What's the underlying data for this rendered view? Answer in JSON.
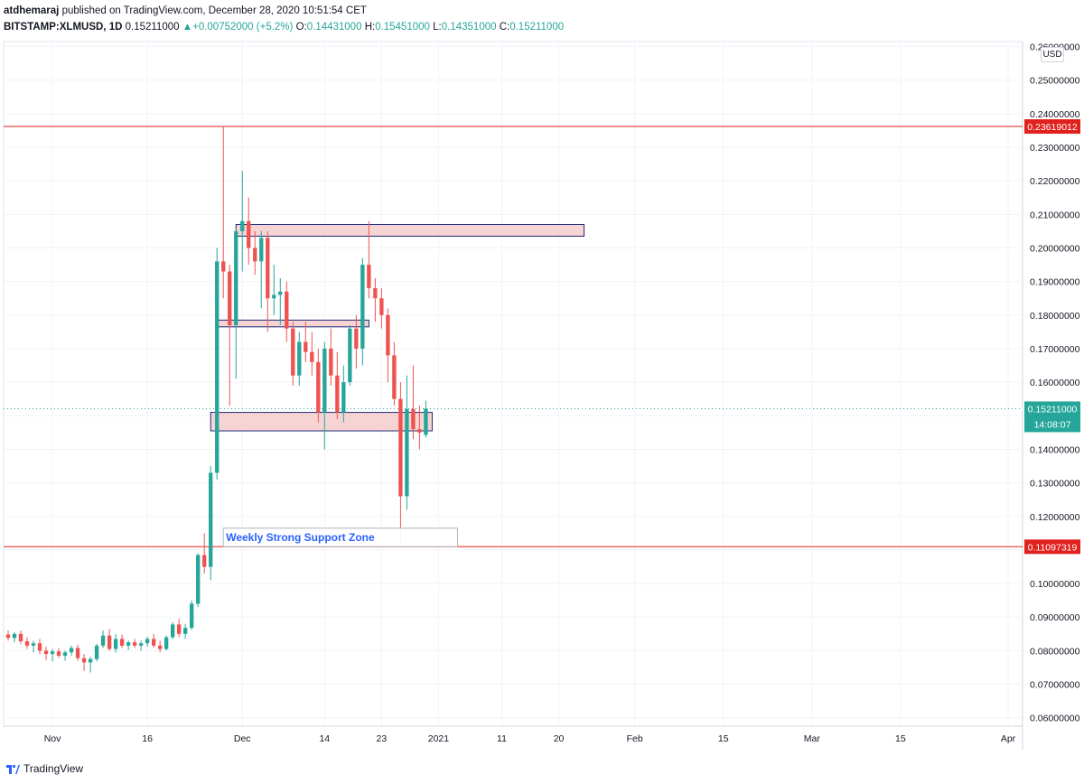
{
  "header": {
    "author": "atdhemaraj",
    "published_text": "published on TradingView.com, December 28, 2020 10:51:54 CET",
    "symbol": "BITSTAMP:XLMUSD, 1D",
    "last": "0.15211000",
    "change": "+0.00752000 (+5.2%)",
    "change_arrow": "▲",
    "open_label": "O:",
    "open": "0.14431000",
    "high_label": "H:",
    "high": "0.15451000",
    "low_label": "L:",
    "low": "0.14351000",
    "close_label": "C:",
    "close": "0.15211000"
  },
  "currency_badge": "USD",
  "footer": {
    "brand": "TradingView",
    "logo_icon": "tradingview-logo-icon"
  },
  "colors": {
    "up": "#26a69a",
    "down": "#ef5350",
    "hline": "#e0211d",
    "zone_fill": "#f4c5c5",
    "zone_border": "#1e2a78",
    "annotation_text": "#2962ff",
    "last_price_bg": "#26a69a"
  },
  "chart_data": {
    "type": "candlestick",
    "title": "",
    "xlabel": "",
    "ylabel": "",
    "ylim": [
      0.0575,
      0.2615
    ],
    "y_ticks": [
      "0.06000000",
      "0.07000000",
      "0.08000000",
      "0.09000000",
      "0.10000000",
      "0.11000000",
      "0.12000000",
      "0.13000000",
      "0.14000000",
      "0.15000000",
      "0.16000000",
      "0.17000000",
      "0.18000000",
      "0.19000000",
      "0.20000000",
      "0.21000000",
      "0.22000000",
      "0.23000000",
      "0.24000000",
      "0.25000000",
      "0.26000000"
    ],
    "x_ticks": [
      "Nov",
      "16",
      "Dec",
      "14",
      "23",
      "2021",
      "11",
      "20",
      "Feb",
      "15",
      "Mar",
      "15",
      "Apr"
    ],
    "x_tick_dates": [
      "2020-11-01",
      "2020-11-16",
      "2020-12-01",
      "2020-12-14",
      "2020-12-23",
      "2021-01-01",
      "2021-01-11",
      "2021-01-20",
      "2021-02-01",
      "2021-02-15",
      "2021-03-01",
      "2021-03-15",
      "2021-04-01"
    ],
    "candles": [
      {
        "date": "2020-10-25",
        "o": 0.0848,
        "h": 0.086,
        "l": 0.083,
        "c": 0.0838
      },
      {
        "date": "2020-10-26",
        "o": 0.0838,
        "h": 0.0855,
        "l": 0.0825,
        "c": 0.085
      },
      {
        "date": "2020-10-27",
        "o": 0.085,
        "h": 0.086,
        "l": 0.082,
        "c": 0.0828
      },
      {
        "date": "2020-10-28",
        "o": 0.0828,
        "h": 0.084,
        "l": 0.0805,
        "c": 0.0815
      },
      {
        "date": "2020-10-29",
        "o": 0.0815,
        "h": 0.083,
        "l": 0.0795,
        "c": 0.0822
      },
      {
        "date": "2020-10-30",
        "o": 0.0822,
        "h": 0.0835,
        "l": 0.079,
        "c": 0.08
      },
      {
        "date": "2020-10-31",
        "o": 0.08,
        "h": 0.0812,
        "l": 0.0772,
        "c": 0.079
      },
      {
        "date": "2020-11-01",
        "o": 0.079,
        "h": 0.0805,
        "l": 0.0768,
        "c": 0.0798
      },
      {
        "date": "2020-11-02",
        "o": 0.0798,
        "h": 0.0808,
        "l": 0.0778,
        "c": 0.0785
      },
      {
        "date": "2020-11-03",
        "o": 0.0785,
        "h": 0.08,
        "l": 0.077,
        "c": 0.0795
      },
      {
        "date": "2020-11-04",
        "o": 0.0795,
        "h": 0.0815,
        "l": 0.0785,
        "c": 0.0808
      },
      {
        "date": "2020-11-05",
        "o": 0.0808,
        "h": 0.0818,
        "l": 0.077,
        "c": 0.0778
      },
      {
        "date": "2020-11-06",
        "o": 0.0778,
        "h": 0.079,
        "l": 0.074,
        "c": 0.0765
      },
      {
        "date": "2020-11-07",
        "o": 0.0765,
        "h": 0.0782,
        "l": 0.0735,
        "c": 0.0775
      },
      {
        "date": "2020-11-08",
        "o": 0.0775,
        "h": 0.082,
        "l": 0.0768,
        "c": 0.0815
      },
      {
        "date": "2020-11-09",
        "o": 0.0815,
        "h": 0.086,
        "l": 0.0808,
        "c": 0.0845
      },
      {
        "date": "2020-11-10",
        "o": 0.0845,
        "h": 0.0865,
        "l": 0.08,
        "c": 0.0805
      },
      {
        "date": "2020-11-11",
        "o": 0.0805,
        "h": 0.085,
        "l": 0.0795,
        "c": 0.0835
      },
      {
        "date": "2020-11-12",
        "o": 0.0835,
        "h": 0.0848,
        "l": 0.0808,
        "c": 0.0815
      },
      {
        "date": "2020-11-13",
        "o": 0.0815,
        "h": 0.083,
        "l": 0.0802,
        "c": 0.0825
      },
      {
        "date": "2020-11-14",
        "o": 0.0825,
        "h": 0.0835,
        "l": 0.0808,
        "c": 0.0815
      },
      {
        "date": "2020-11-15",
        "o": 0.0815,
        "h": 0.083,
        "l": 0.08,
        "c": 0.0822
      },
      {
        "date": "2020-11-16",
        "o": 0.0822,
        "h": 0.0842,
        "l": 0.0812,
        "c": 0.0835
      },
      {
        "date": "2020-11-17",
        "o": 0.0835,
        "h": 0.085,
        "l": 0.081,
        "c": 0.0815
      },
      {
        "date": "2020-11-18",
        "o": 0.0815,
        "h": 0.083,
        "l": 0.0795,
        "c": 0.0805
      },
      {
        "date": "2020-11-19",
        "o": 0.0805,
        "h": 0.0845,
        "l": 0.08,
        "c": 0.084
      },
      {
        "date": "2020-11-20",
        "o": 0.084,
        "h": 0.0885,
        "l": 0.0835,
        "c": 0.0878
      },
      {
        "date": "2020-11-21",
        "o": 0.0878,
        "h": 0.0895,
        "l": 0.084,
        "c": 0.085
      },
      {
        "date": "2020-11-22",
        "o": 0.085,
        "h": 0.088,
        "l": 0.0835,
        "c": 0.0868
      },
      {
        "date": "2020-11-23",
        "o": 0.0868,
        "h": 0.095,
        "l": 0.0862,
        "c": 0.094
      },
      {
        "date": "2020-11-24",
        "o": 0.094,
        "h": 0.109,
        "l": 0.093,
        "c": 0.1085
      },
      {
        "date": "2020-11-25",
        "o": 0.1085,
        "h": 0.115,
        "l": 0.103,
        "c": 0.105
      },
      {
        "date": "2020-11-26",
        "o": 0.105,
        "h": 0.135,
        "l": 0.101,
        "c": 0.133
      },
      {
        "date": "2020-11-27",
        "o": 0.133,
        "h": 0.2,
        "l": 0.131,
        "c": 0.196
      },
      {
        "date": "2020-11-28",
        "o": 0.196,
        "h": 0.236,
        "l": 0.185,
        "c": 0.193
      },
      {
        "date": "2020-11-29",
        "o": 0.193,
        "h": 0.195,
        "l": 0.153,
        "c": 0.177
      },
      {
        "date": "2020-11-30",
        "o": 0.177,
        "h": 0.206,
        "l": 0.161,
        "c": 0.205
      },
      {
        "date": "2020-12-01",
        "o": 0.205,
        "h": 0.223,
        "l": 0.193,
        "c": 0.208
      },
      {
        "date": "2020-12-02",
        "o": 0.208,
        "h": 0.215,
        "l": 0.195,
        "c": 0.2
      },
      {
        "date": "2020-12-03",
        "o": 0.2,
        "h": 0.205,
        "l": 0.192,
        "c": 0.196
      },
      {
        "date": "2020-12-04",
        "o": 0.196,
        "h": 0.205,
        "l": 0.182,
        "c": 0.203
      },
      {
        "date": "2020-12-05",
        "o": 0.203,
        "h": 0.205,
        "l": 0.175,
        "c": 0.185
      },
      {
        "date": "2020-12-06",
        "o": 0.185,
        "h": 0.195,
        "l": 0.18,
        "c": 0.186
      },
      {
        "date": "2020-12-07",
        "o": 0.186,
        "h": 0.191,
        "l": 0.177,
        "c": 0.187
      },
      {
        "date": "2020-12-08",
        "o": 0.187,
        "h": 0.19,
        "l": 0.172,
        "c": 0.176
      },
      {
        "date": "2020-12-09",
        "o": 0.176,
        "h": 0.178,
        "l": 0.159,
        "c": 0.162
      },
      {
        "date": "2020-12-10",
        "o": 0.162,
        "h": 0.175,
        "l": 0.159,
        "c": 0.172
      },
      {
        "date": "2020-12-11",
        "o": 0.172,
        "h": 0.178,
        "l": 0.166,
        "c": 0.169
      },
      {
        "date": "2020-12-12",
        "o": 0.169,
        "h": 0.175,
        "l": 0.162,
        "c": 0.166
      },
      {
        "date": "2020-12-13",
        "o": 0.166,
        "h": 0.17,
        "l": 0.148,
        "c": 0.151
      },
      {
        "date": "2020-12-14",
        "o": 0.151,
        "h": 0.172,
        "l": 0.14,
        "c": 0.17
      },
      {
        "date": "2020-12-15",
        "o": 0.17,
        "h": 0.176,
        "l": 0.159,
        "c": 0.162
      },
      {
        "date": "2020-12-16",
        "o": 0.162,
        "h": 0.169,
        "l": 0.149,
        "c": 0.151
      },
      {
        "date": "2020-12-17",
        "o": 0.151,
        "h": 0.165,
        "l": 0.148,
        "c": 0.16
      },
      {
        "date": "2020-12-18",
        "o": 0.16,
        "h": 0.177,
        "l": 0.159,
        "c": 0.176
      },
      {
        "date": "2020-12-19",
        "o": 0.176,
        "h": 0.18,
        "l": 0.164,
        "c": 0.17
      },
      {
        "date": "2020-12-20",
        "o": 0.17,
        "h": 0.197,
        "l": 0.165,
        "c": 0.195
      },
      {
        "date": "2020-12-21",
        "o": 0.195,
        "h": 0.208,
        "l": 0.185,
        "c": 0.188
      },
      {
        "date": "2020-12-22",
        "o": 0.188,
        "h": 0.191,
        "l": 0.178,
        "c": 0.185
      },
      {
        "date": "2020-12-23",
        "o": 0.185,
        "h": 0.188,
        "l": 0.176,
        "c": 0.18
      },
      {
        "date": "2020-12-24",
        "o": 0.18,
        "h": 0.182,
        "l": 0.16,
        "c": 0.168
      },
      {
        "date": "2020-12-25",
        "o": 0.168,
        "h": 0.172,
        "l": 0.153,
        "c": 0.155
      },
      {
        "date": "2020-12-26",
        "o": 0.155,
        "h": 0.16,
        "l": 0.112,
        "c": 0.126
      },
      {
        "date": "2020-12-27",
        "o": 0.126,
        "h": 0.162,
        "l": 0.122,
        "c": 0.152
      },
      {
        "date": "2020-12-28",
        "o": 0.152,
        "h": 0.165,
        "l": 0.143,
        "c": 0.146
      },
      {
        "date": "2020-12-29",
        "o": 0.146,
        "h": 0.153,
        "l": 0.14,
        "c": 0.145
      },
      {
        "date": "2020-12-30",
        "o": 0.1443,
        "h": 0.1545,
        "l": 0.1435,
        "c": 0.1521
      }
    ],
    "horizontal_lines": [
      {
        "value": 0.23619012,
        "label": "0.23619012"
      },
      {
        "value": 0.11097319,
        "label": "0.11097319"
      }
    ],
    "last_price": {
      "value": 0.15211,
      "label": "0.15211000",
      "countdown": "14:08:07"
    },
    "zones": [
      {
        "start": "2020-11-30",
        "end": "2021-01-24",
        "low": 0.2035,
        "high": 0.207
      },
      {
        "start": "2020-11-27",
        "end": "2020-12-21",
        "low": 0.1765,
        "high": 0.1785
      },
      {
        "start": "2020-11-26",
        "end": "2020-12-31",
        "low": 0.1455,
        "high": 0.151
      }
    ],
    "annotation": {
      "text": "Weekly Strong Support Zone",
      "start": "2020-11-28",
      "end": "2021-01-04",
      "low": 0.111,
      "high": 0.1165
    },
    "grid": true,
    "price_scale_position": "right"
  }
}
